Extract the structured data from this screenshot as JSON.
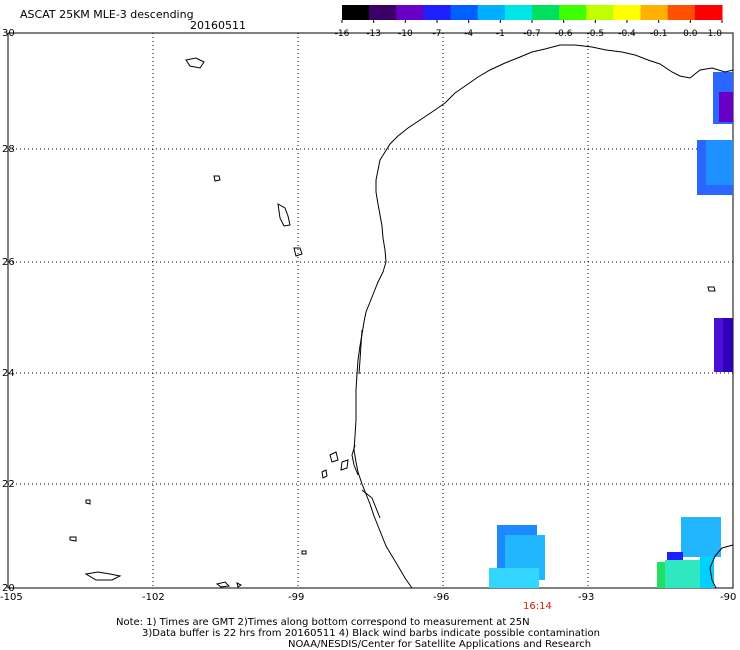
{
  "header": {
    "title": "ASCAT 25KM MLE-3 descending",
    "date": "20160511"
  },
  "colorbar": {
    "labels": [
      "-16",
      "-13",
      "-10",
      "-7",
      "-4",
      "-1",
      "-0.7",
      "-0.6",
      "-0.5",
      "-0.4",
      "-0.1",
      "0.0",
      "1.0"
    ],
    "colors": [
      "#000000",
      "#3a0066",
      "#6a00c8",
      "#2020ff",
      "#0060ff",
      "#00b0ff",
      "#00e6e6",
      "#00e060",
      "#40ff00",
      "#c0ff00",
      "#ffff00",
      "#ffb000",
      "#ff5000",
      "#ff0000"
    ]
  },
  "map": {
    "lon_labels": [
      "-105",
      "-102",
      "-99",
      "-96",
      "-93",
      "-90"
    ],
    "lat_labels": [
      "30",
      "28",
      "26",
      "24",
      "22",
      "20"
    ],
    "lon_range": [
      -105,
      -90
    ],
    "lat_range": [
      20,
      30
    ],
    "grid": "dotted",
    "time_label": "16:14"
  },
  "notes": {
    "line1": "Note: 1) Times are GMT 2)Times along bottom correspond to measurement at 25N",
    "line2": "3)Data buffer is 22 hrs from 20160511 4) Black wind barbs indicate possible contamination",
    "line3": "NOAA/NESDIS/Center for Satellite Applications and Research"
  }
}
